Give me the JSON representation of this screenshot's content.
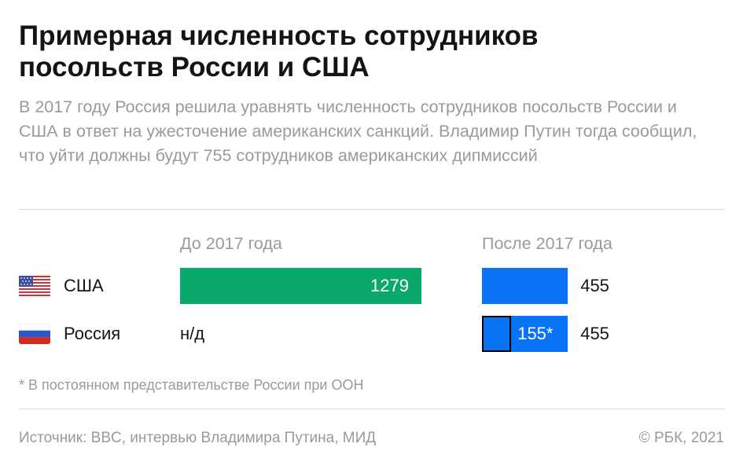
{
  "header": {
    "title_line1": "Примерная численность сотрудников",
    "title_line2": "посольств России и США",
    "subtitle": "В 2017 году Россия решила уравнять численность сотрудников посольств России и США в ответ на ужесточение американских санкций. Владимир Путин тогда сообщил, что уйти должны будут 755 сотрудников американских дипмиссий"
  },
  "chart_data": {
    "type": "bar",
    "columns": [
      "До 2017 года",
      "После 2017 года"
    ],
    "rows": [
      {
        "name": "США",
        "flag_icon": "usa-flag-icon",
        "before": 1279,
        "before_label": "1279",
        "after": 455,
        "after_label": "455"
      },
      {
        "name": "Россия",
        "flag_icon": "russia-flag-icon",
        "before": null,
        "before_label": "н/д",
        "after": 455,
        "after_label": "455",
        "after_inner": 155,
        "after_inner_label": "155*"
      }
    ],
    "colors": {
      "before": "#0aa86a",
      "after": "#0a73f5",
      "inner_outline": "#000000"
    }
  },
  "footnote": "* В постоянном представительстве России при ООН",
  "footer": {
    "source": "Источник: BBC, интервью Владимира Путина, МИД",
    "copyright": "© РБК, 2021"
  }
}
